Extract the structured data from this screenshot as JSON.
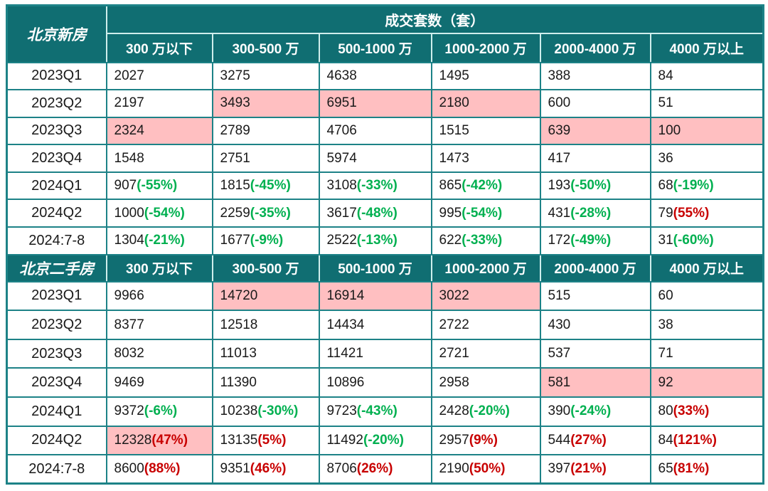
{
  "colors": {
    "header_bg": "#106e72",
    "highlight_bg": "#ffbfc1",
    "grid": "#1d8287",
    "down_green": "#00b050",
    "up_red": "#c80000"
  },
  "chart_data": {
    "type": "table",
    "title": "成交套数（套）",
    "span_header": "成交套数（套）",
    "columns": [
      "300 万以下",
      "300-500 万",
      "500-1000 万",
      "1000-2000 万",
      "2000-4000 万",
      "4000 万以上"
    ],
    "sections": [
      {
        "label": "北京新房",
        "rows": [
          {
            "period": "2023Q1",
            "cells": [
              {
                "v": "2027"
              },
              {
                "v": "3275"
              },
              {
                "v": "4638"
              },
              {
                "v": "1495"
              },
              {
                "v": "388"
              },
              {
                "v": "84"
              }
            ]
          },
          {
            "period": "2023Q2",
            "cells": [
              {
                "v": "2197"
              },
              {
                "v": "3493",
                "hl": true
              },
              {
                "v": "6951",
                "hl": true
              },
              {
                "v": "2180",
                "hl": true
              },
              {
                "v": "600"
              },
              {
                "v": "51"
              }
            ]
          },
          {
            "period": "2023Q3",
            "cells": [
              {
                "v": "2324",
                "hl": true
              },
              {
                "v": "2789"
              },
              {
                "v": "4706"
              },
              {
                "v": "1515"
              },
              {
                "v": "639",
                "hl": true
              },
              {
                "v": "100",
                "hl": true
              }
            ]
          },
          {
            "period": "2023Q4",
            "cells": [
              {
                "v": "1548"
              },
              {
                "v": "2751"
              },
              {
                "v": "5974"
              },
              {
                "v": "1473"
              },
              {
                "v": "417"
              },
              {
                "v": "36"
              }
            ]
          },
          {
            "period": "2024Q1",
            "cells": [
              {
                "v": "907",
                "p": "(-55%)",
                "pc": "green"
              },
              {
                "v": "1815",
                "p": "(-45%)",
                "pc": "green"
              },
              {
                "v": "3108",
                "p": "(-33%)",
                "pc": "green"
              },
              {
                "v": "865",
                "p": "(-42%)",
                "pc": "green"
              },
              {
                "v": "193",
                "p": "(-50%)",
                "pc": "green"
              },
              {
                "v": "68",
                "p": "(-19%)",
                "pc": "green"
              }
            ]
          },
          {
            "period": "2024Q2",
            "cells": [
              {
                "v": "1000",
                "p": "(-54%)",
                "pc": "green"
              },
              {
                "v": "2259",
                "p": "(-35%)",
                "pc": "green"
              },
              {
                "v": "3617",
                "p": "(-48%)",
                "pc": "green"
              },
              {
                "v": "995",
                "p": "(-54%)",
                "pc": "green"
              },
              {
                "v": "431",
                "p": "(-28%)",
                "pc": "green"
              },
              {
                "v": "79",
                "p": "(55%)",
                "pc": "red"
              }
            ]
          },
          {
            "period": "2024:7-8",
            "cells": [
              {
                "v": "1304",
                "p": "(-21%)",
                "pc": "green"
              },
              {
                "v": "1677",
                "p": "(-9%)",
                "pc": "green"
              },
              {
                "v": "2522",
                "p": "(-13%)",
                "pc": "green"
              },
              {
                "v": "622",
                "p": "(-33%)",
                "pc": "green"
              },
              {
                "v": "172",
                "p": "(-49%)",
                "pc": "green"
              },
              {
                "v": "31",
                "p": "(-60%)",
                "pc": "green"
              }
            ]
          }
        ]
      },
      {
        "label": "北京二手房",
        "rows": [
          {
            "period": "2023Q1",
            "cells": [
              {
                "v": "9966"
              },
              {
                "v": "14720",
                "hl": true
              },
              {
                "v": "16914",
                "hl": true
              },
              {
                "v": "3022",
                "hl": true
              },
              {
                "v": "515"
              },
              {
                "v": "60"
              }
            ]
          },
          {
            "period": "2023Q2",
            "cells": [
              {
                "v": "8377"
              },
              {
                "v": "12518"
              },
              {
                "v": "14434"
              },
              {
                "v": "2722"
              },
              {
                "v": "430"
              },
              {
                "v": "38"
              }
            ]
          },
          {
            "period": "2023Q3",
            "cells": [
              {
                "v": "8032"
              },
              {
                "v": "11013"
              },
              {
                "v": "11421"
              },
              {
                "v": "2721"
              },
              {
                "v": "537"
              },
              {
                "v": "71"
              }
            ]
          },
          {
            "period": "2023Q4",
            "cells": [
              {
                "v": "9469"
              },
              {
                "v": "11390"
              },
              {
                "v": "10896"
              },
              {
                "v": "2958"
              },
              {
                "v": "581",
                "hl": true
              },
              {
                "v": "92",
                "hl": true
              }
            ]
          },
          {
            "period": "2024Q1",
            "cells": [
              {
                "v": "9372",
                "p": "(-6%)",
                "pc": "green"
              },
              {
                "v": "10238",
                "p": "(-30%)",
                "pc": "green"
              },
              {
                "v": "9723",
                "p": "(-43%)",
                "pc": "green"
              },
              {
                "v": "2428",
                "p": "(-20%)",
                "pc": "green"
              },
              {
                "v": "390",
                "p": "(-24%)",
                "pc": "green"
              },
              {
                "v": "80",
                "p": "(33%)",
                "pc": "red"
              }
            ]
          },
          {
            "period": "2024Q2",
            "cells": [
              {
                "v": "12328",
                "p": "(47%)",
                "pc": "red",
                "hl": true
              },
              {
                "v": "13135",
                "p": "(5%)",
                "pc": "red"
              },
              {
                "v": "11492",
                "p": "(-20%)",
                "pc": "green"
              },
              {
                "v": "2957",
                "p": "(9%)",
                "pc": "red"
              },
              {
                "v": "544",
                "p": "(27%)",
                "pc": "red"
              },
              {
                "v": "84",
                "p": "(121%)",
                "pc": "red"
              }
            ]
          },
          {
            "period": "2024:7-8",
            "cells": [
              {
                "v": "8600",
                "p": "(88%)",
                "pc": "red"
              },
              {
                "v": "9351",
                "p": "(46%)",
                "pc": "red"
              },
              {
                "v": "8706",
                "p": "(26%)",
                "pc": "red"
              },
              {
                "v": "2190",
                "p": "(50%)",
                "pc": "red"
              },
              {
                "v": "397",
                "p": "(21%)",
                "pc": "red"
              },
              {
                "v": "65",
                "p": "(81%)",
                "pc": "red"
              }
            ]
          }
        ]
      }
    ]
  }
}
